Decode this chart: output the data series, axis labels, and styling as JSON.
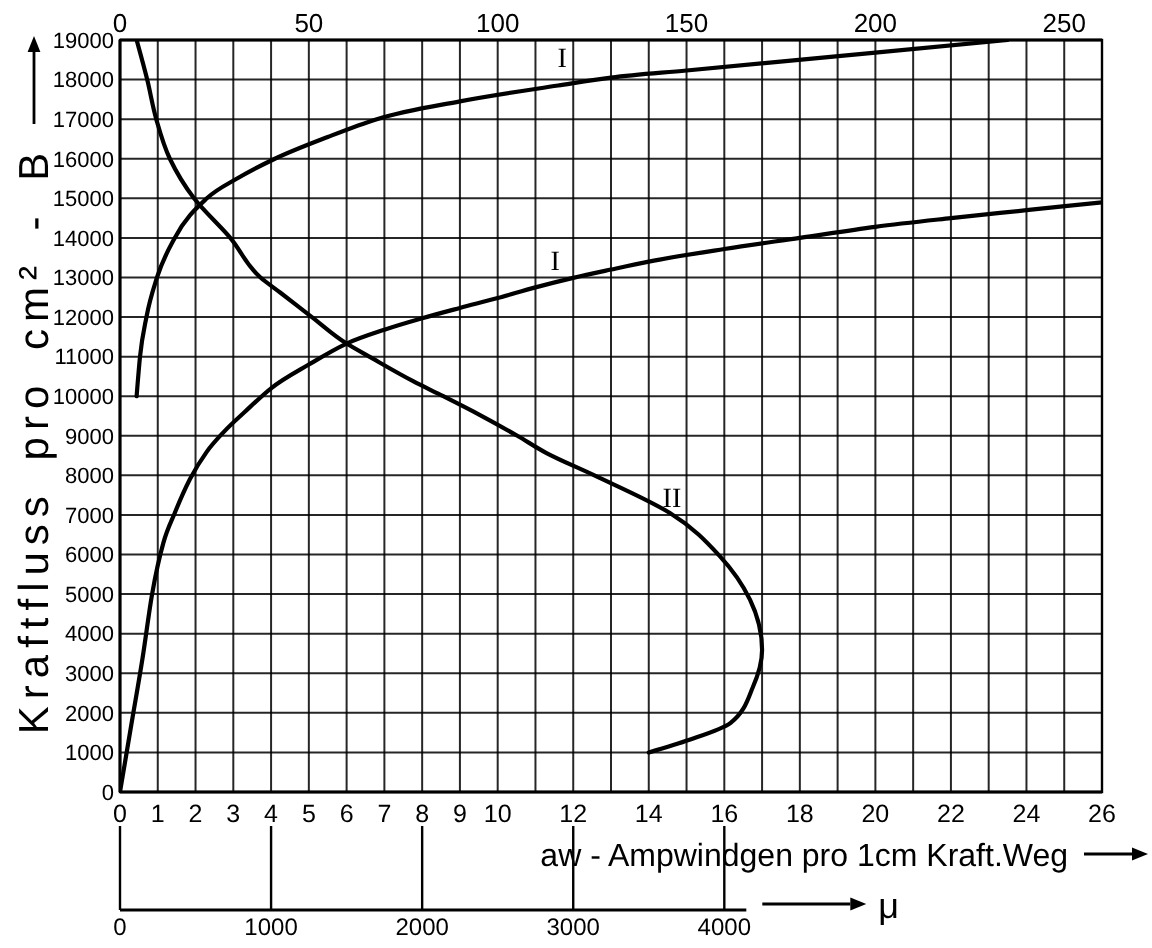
{
  "chart_data": [
    {
      "type": "line",
      "xlabel": "aw - Ampwindgen pro 1cm Kraft.Weg",
      "ylabel": "Kraftfluss pro cm² - B",
      "xlim": [
        0,
        26
      ],
      "xticks": [
        0,
        1,
        2,
        3,
        4,
        5,
        6,
        7,
        8,
        9,
        10,
        {
          "value": 11,
          "label": null
        },
        12,
        {
          "value": 13,
          "label": null
        },
        14,
        {
          "value": 15,
          "label": null
        },
        16,
        {
          "value": 17,
          "label": null
        },
        18,
        {
          "value": 19,
          "label": null
        },
        20,
        {
          "value": 21,
          "label": null
        },
        22,
        {
          "value": 23,
          "label": null
        },
        24,
        {
          "value": 25,
          "label": null
        },
        26
      ],
      "x2lim": [
        0,
        260
      ],
      "x2ticks": [
        0,
        50,
        100,
        150,
        200,
        250
      ],
      "ylim": [
        0,
        19000
      ],
      "yticks": [
        0,
        1000,
        2000,
        3000,
        4000,
        5000,
        6000,
        7000,
        8000,
        9000,
        10000,
        11000,
        12000,
        13000,
        14000,
        15000,
        16000,
        17000,
        18000,
        19000
      ],
      "grid": true,
      "marker": "none",
      "line_style": "solid",
      "series": [
        {
          "name": "I",
          "color": "#000000",
          "axis": "x2",
          "x": [
            4.4,
            5.3,
            7,
            9.8,
            14.5,
            23,
            31,
            41,
            55,
            68,
            90,
            116,
            130,
            150,
            200,
            235
          ],
          "values": [
            10000,
            11000,
            12000,
            13000,
            14000,
            15000,
            15500,
            16000,
            16550,
            17000,
            17450,
            17850,
            18050,
            18230,
            18680,
            19000
          ]
        },
        {
          "name": "I",
          "color": "#000000",
          "x": [
            0,
            0.3,
            0.6,
            0.85,
            1.15,
            1.45,
            1.85,
            2.3,
            2.75,
            3.3,
            4,
            5,
            6,
            7,
            8,
            9,
            10,
            11,
            12,
            13,
            14,
            16,
            18,
            20,
            22,
            24,
            26
          ],
          "values": [
            0,
            1700,
            3400,
            5000,
            6300,
            7050,
            7900,
            8600,
            9100,
            9600,
            10200,
            10800,
            11330,
            11680,
            11970,
            12230,
            12480,
            12750,
            12990,
            13200,
            13400,
            13720,
            14000,
            14280,
            14500,
            14700,
            14900
          ]
        }
      ]
    },
    {
      "type": "line",
      "xlabel": "μ",
      "xlim": [
        0,
        6500
      ],
      "xticks": [
        0,
        1000,
        2000,
        3000,
        4000
      ],
      "ylim": [
        0,
        19000
      ],
      "tick_labels": "x",
      "marker": "none",
      "line_style": "solid",
      "series": [
        {
          "name": "II",
          "color": "#000000",
          "x": [
            110,
            180,
            240,
            330,
            490,
            730,
            930,
            1060,
            1270,
            1500,
            1650,
            1940,
            2140,
            2380,
            2630,
            2820,
            3140,
            3640,
            3970,
            4170,
            4250,
            4190,
            4040,
            3770,
            3500
          ],
          "values": [
            19000,
            18000,
            17000,
            16000,
            15000,
            14000,
            13000,
            12620,
            12000,
            11330,
            11000,
            10380,
            10000,
            9530,
            9000,
            8570,
            8000,
            7050,
            5960,
            4860,
            3590,
            2660,
            1740,
            1320,
            1000
          ]
        }
      ]
    }
  ]
}
